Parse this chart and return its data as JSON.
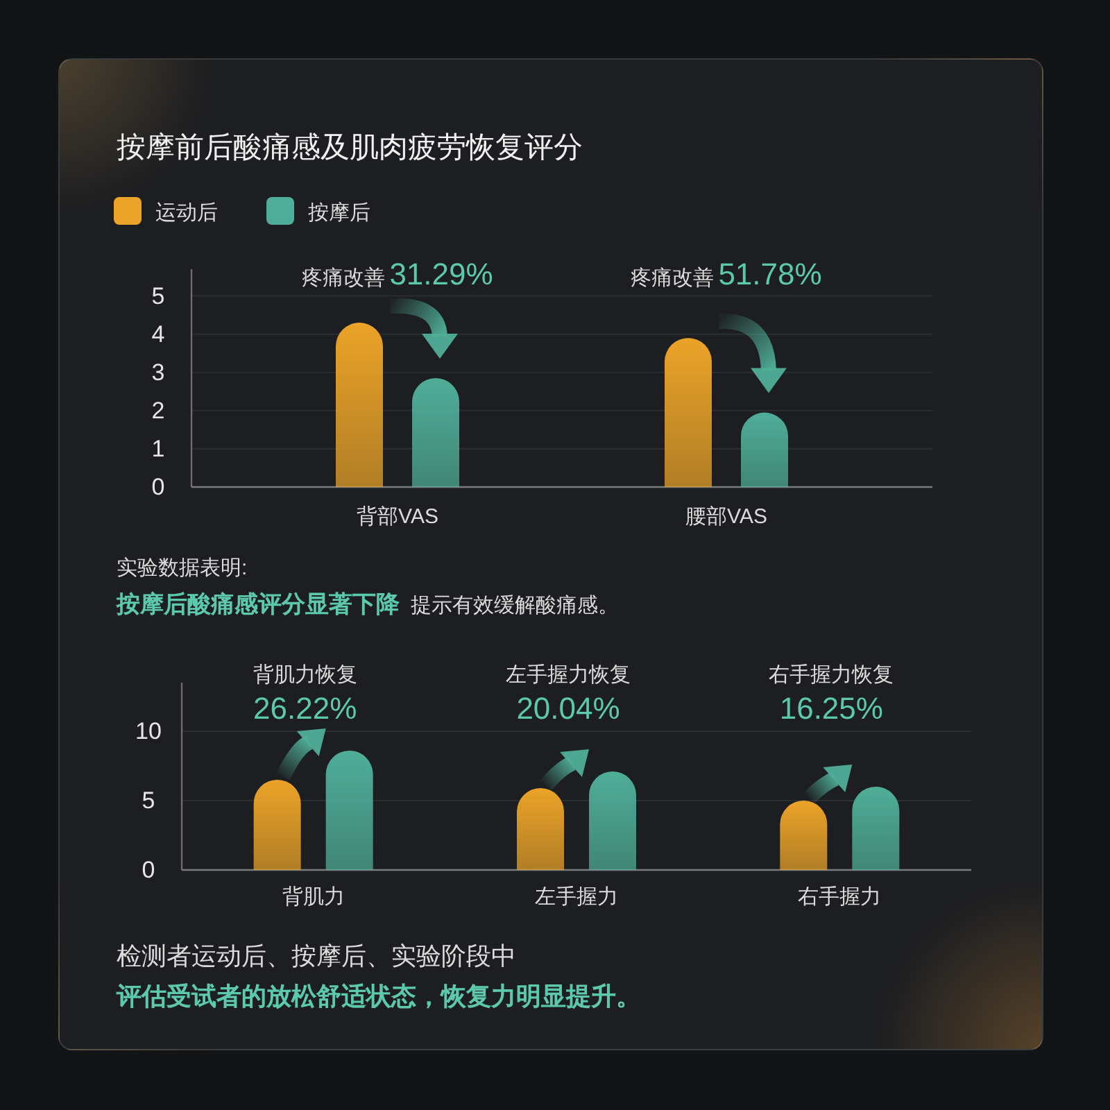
{
  "chart_data": [
    {
      "type": "bar",
      "title": "按摩前后酸痛感及肌肉疲劳恢复评分",
      "categories": [
        "背部VAS",
        "腰部VAS"
      ],
      "series": [
        {
          "name": "运动后",
          "color": "#eba328",
          "values": [
            4.3,
            3.9
          ]
        },
        {
          "name": "按摩后",
          "color": "#4fae98",
          "values": [
            2.85,
            1.95
          ]
        }
      ],
      "ylim": [
        0,
        5.7
      ],
      "yticks": [
        0,
        1,
        2,
        3,
        4,
        5
      ],
      "grid": "y",
      "legend": "top left",
      "annotations": [
        "疼痛改善",
        "31.29%",
        "疼痛改善",
        "51.78%",
        "实验数据表明:",
        "按摩后酸痛感评分显著下降",
        "提示有效缓解酸痛感。"
      ]
    },
    {
      "type": "bar",
      "categories": [
        "背肌力",
        "左手握力",
        "右手握力"
      ],
      "series": [
        {
          "color": "#eba328",
          "values": [
            6.5,
            5.9,
            5.0
          ]
        },
        {
          "color": "#4fae98",
          "values": [
            8.6,
            7.1,
            6.0
          ]
        }
      ],
      "ylim": [
        0,
        13.5
      ],
      "yticks": [
        0,
        5,
        10
      ],
      "grid": "y",
      "annotations": [
        "背肌力恢复",
        "26.22%",
        "左手握力恢复",
        "20.04%",
        "右手握力恢复",
        "16.25%",
        "检测者运动后、按摩后、实验阶段中",
        "评估受试者的放松舒适状态，恢复力明显提升。"
      ]
    }
  ]
}
